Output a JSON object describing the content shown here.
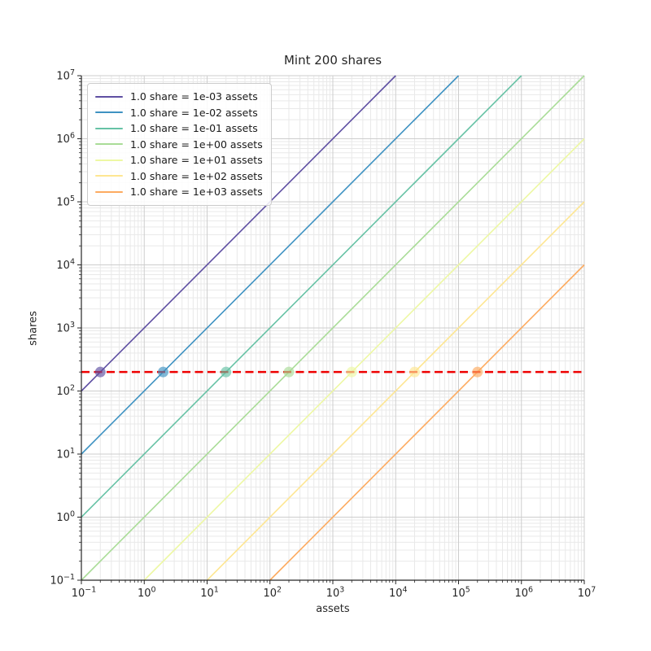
{
  "figure": {
    "title": "Mint 200 shares",
    "xlabel": "assets",
    "ylabel": "shares"
  },
  "chart_data": {
    "type": "line",
    "title": "Mint 200 shares",
    "xlabel": "assets",
    "ylabel": "shares",
    "x_scale": "log",
    "y_scale": "log",
    "xlim": [
      0.1,
      10000000
    ],
    "ylim": [
      0.1,
      10000000
    ],
    "x_tick_exponents": [
      -1,
      0,
      1,
      2,
      3,
      4,
      5,
      6,
      7
    ],
    "y_tick_exponents": [
      -1,
      0,
      1,
      2,
      3,
      4,
      5,
      6,
      7
    ],
    "grid": {
      "major": true,
      "minor": true,
      "major_color": "#cdcdcd",
      "minor_color": "#e9e9e9"
    },
    "legend_position": "upper left",
    "target_shares": 200,
    "target_line": {
      "y": 200,
      "color": "#ee0000",
      "style": "dashed",
      "width": 2.5
    },
    "series": [
      {
        "label": "1.0 share = 1e-03 assets",
        "assets_per_share": 0.001,
        "color": "#5e4fa2",
        "line_points": [
          [
            0.1,
            100
          ],
          [
            10000,
            10000000
          ]
        ],
        "marker": {
          "assets": 0.2,
          "shares": 200
        }
      },
      {
        "label": "1.0 share = 1e-02 assets",
        "assets_per_share": 0.01,
        "color": "#3e92c2",
        "line_points": [
          [
            0.1,
            10
          ],
          [
            100000,
            10000000
          ]
        ],
        "marker": {
          "assets": 2,
          "shares": 200
        }
      },
      {
        "label": "1.0 share = 1e-01 assets",
        "assets_per_share": 0.1,
        "color": "#66c2a5",
        "line_points": [
          [
            0.1,
            1
          ],
          [
            1000000,
            10000000
          ]
        ],
        "marker": {
          "assets": 20,
          "shares": 200
        }
      },
      {
        "label": "1.0 share = 1e+00 assets",
        "assets_per_share": 1,
        "color": "#a9dc97",
        "line_points": [
          [
            0.1,
            0.1
          ],
          [
            10000000,
            10000000
          ]
        ],
        "marker": {
          "assets": 200,
          "shares": 200
        }
      },
      {
        "label": "1.0 share = 1e+01 assets",
        "assets_per_share": 10,
        "color": "#edf8a3",
        "line_points": [
          [
            1,
            0.1
          ],
          [
            10000000,
            1000000
          ]
        ],
        "marker": {
          "assets": 2000,
          "shares": 200
        }
      },
      {
        "label": "1.0 share = 1e+02 assets",
        "assets_per_share": 100,
        "color": "#fee692",
        "line_points": [
          [
            10,
            0.1
          ],
          [
            10000000,
            100000
          ]
        ],
        "marker": {
          "assets": 20000,
          "shares": 200
        }
      },
      {
        "label": "1.0 share = 1e+03 assets",
        "assets_per_share": 1000,
        "color": "#fdab60",
        "line_points": [
          [
            100,
            0.1
          ],
          [
            10000000,
            10000
          ]
        ],
        "marker": {
          "assets": 200000,
          "shares": 200
        }
      }
    ]
  }
}
